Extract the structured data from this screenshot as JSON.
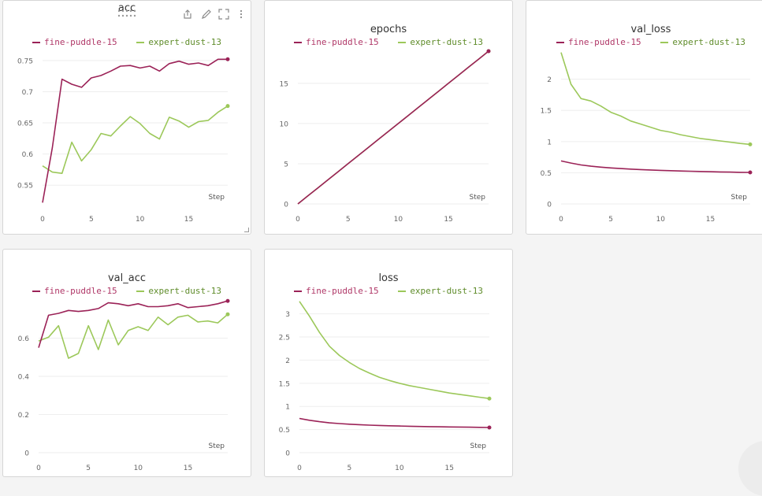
{
  "toolbar": {
    "drag": "drag-handle-icon",
    "export": "export-icon",
    "edit": "edit-icon",
    "fullscreen": "fullscreen-icon",
    "more": "more-vertical-icon"
  },
  "series_names": [
    "fine-puddle-15",
    "expert-dust-13"
  ],
  "series_colors": [
    "#9b2257",
    "#9cc85a"
  ],
  "legend_text_colors": [
    "#b03868",
    "#5f8c2a"
  ],
  "chart_data": [
    {
      "type": "line",
      "title": "acc",
      "xlabel": "Step",
      "xlim": [
        0,
        19
      ],
      "ylim": [
        0.52,
        0.765
      ],
      "yticks": [
        0.55,
        0.6,
        0.65,
        0.7,
        0.75
      ],
      "ytick_labels": [
        "0.55",
        "0.6",
        "0.65",
        "0.7",
        "0.75"
      ],
      "xticks": [
        0,
        5,
        10,
        15
      ],
      "xtick_labels": [
        "0",
        "5",
        "10",
        "15"
      ],
      "series": [
        {
          "name": "fine-puddle-15",
          "x": [
            0,
            1,
            2,
            3,
            4,
            5,
            6,
            7,
            8,
            9,
            10,
            11,
            12,
            13,
            14,
            15,
            16,
            17,
            18,
            19
          ],
          "values": [
            0.522,
            0.61,
            0.72,
            0.712,
            0.707,
            0.722,
            0.726,
            0.733,
            0.741,
            0.742,
            0.738,
            0.741,
            0.733,
            0.745,
            0.749,
            0.744,
            0.746,
            0.742,
            0.752,
            0.752
          ]
        },
        {
          "name": "expert-dust-13",
          "x": [
            0,
            1,
            2,
            3,
            4,
            5,
            6,
            7,
            8,
            9,
            10,
            11,
            12,
            13,
            14,
            15,
            16,
            17,
            18,
            19
          ],
          "values": [
            0.581,
            0.571,
            0.569,
            0.619,
            0.589,
            0.607,
            0.633,
            0.629,
            0.645,
            0.66,
            0.649,
            0.633,
            0.624,
            0.659,
            0.653,
            0.643,
            0.652,
            0.654,
            0.667,
            0.677
          ]
        }
      ]
    },
    {
      "type": "line",
      "title": "epochs",
      "xlabel": "Step",
      "xlim": [
        0,
        19
      ],
      "ylim": [
        0,
        19
      ],
      "yticks": [
        0,
        5,
        10,
        15
      ],
      "ytick_labels": [
        "0",
        "5",
        "10",
        "15"
      ],
      "xticks": [
        0,
        5,
        10,
        15
      ],
      "xtick_labels": [
        "0",
        "5",
        "10",
        "15"
      ],
      "series": [
        {
          "name": "fine-puddle-15",
          "x": [
            0,
            1,
            2,
            3,
            4,
            5,
            6,
            7,
            8,
            9,
            10,
            11,
            12,
            13,
            14,
            15,
            16,
            17,
            18,
            19
          ],
          "values": [
            0,
            1,
            2,
            3,
            4,
            5,
            6,
            7,
            8,
            9,
            10,
            11,
            12,
            13,
            14,
            15,
            16,
            17,
            18,
            19
          ]
        },
        {
          "name": "expert-dust-13",
          "x": [
            0,
            1,
            2,
            3,
            4,
            5,
            6,
            7,
            8,
            9,
            10,
            11,
            12,
            13,
            14,
            15,
            16,
            17,
            18,
            19
          ],
          "values": [
            0,
            1,
            2,
            3,
            4,
            5,
            6,
            7,
            8,
            9,
            10,
            11,
            12,
            13,
            14,
            15,
            16,
            17,
            18,
            19
          ]
        }
      ]
    },
    {
      "type": "line",
      "title": "val_loss",
      "xlabel": "Step",
      "xlim": [
        0,
        19
      ],
      "ylim": [
        0,
        2.45
      ],
      "yticks": [
        0,
        0.5,
        1,
        1.5,
        2
      ],
      "ytick_labels": [
        "0",
        "0.5",
        "1",
        "1.5",
        "2"
      ],
      "xticks": [
        0,
        5,
        10,
        15
      ],
      "xtick_labels": [
        "0",
        "5",
        "10",
        "15"
      ],
      "series": [
        {
          "name": "fine-puddle-15",
          "x": [
            0,
            1,
            2,
            3,
            4,
            5,
            6,
            7,
            8,
            9,
            10,
            11,
            12,
            13,
            14,
            15,
            16,
            17,
            18,
            19
          ],
          "values": [
            0.69,
            0.655,
            0.625,
            0.605,
            0.59,
            0.577,
            0.567,
            0.558,
            0.55,
            0.544,
            0.538,
            0.533,
            0.528,
            0.524,
            0.52,
            0.517,
            0.513,
            0.51,
            0.507,
            0.505
          ]
        },
        {
          "name": "expert-dust-13",
          "x": [
            0,
            1,
            2,
            3,
            4,
            5,
            6,
            7,
            8,
            9,
            10,
            11,
            12,
            13,
            14,
            15,
            16,
            17,
            18,
            19
          ],
          "values": [
            2.43,
            1.92,
            1.69,
            1.65,
            1.57,
            1.47,
            1.41,
            1.33,
            1.28,
            1.23,
            1.18,
            1.15,
            1.11,
            1.08,
            1.05,
            1.03,
            1.01,
            0.99,
            0.97,
            0.955
          ]
        }
      ]
    },
    {
      "type": "line",
      "title": "val_acc",
      "xlabel": "Step",
      "xlim": [
        0,
        19
      ],
      "ylim": [
        0,
        0.8
      ],
      "yticks": [
        0,
        0.2,
        0.4,
        0.6
      ],
      "ytick_labels": [
        "0",
        "0.2",
        "0.4",
        "0.6"
      ],
      "xticks": [
        0,
        5,
        10,
        15
      ],
      "xtick_labels": [
        "0",
        "5",
        "10",
        "15"
      ],
      "series": [
        {
          "name": "fine-puddle-15",
          "x": [
            0,
            1,
            2,
            3,
            4,
            5,
            6,
            7,
            8,
            9,
            10,
            11,
            12,
            13,
            14,
            15,
            16,
            17,
            18,
            19
          ],
          "values": [
            0.55,
            0.72,
            0.73,
            0.745,
            0.74,
            0.745,
            0.755,
            0.785,
            0.78,
            0.77,
            0.78,
            0.765,
            0.765,
            0.77,
            0.78,
            0.76,
            0.765,
            0.77,
            0.78,
            0.795
          ]
        },
        {
          "name": "expert-dust-13",
          "x": [
            0,
            1,
            2,
            3,
            4,
            5,
            6,
            7,
            8,
            9,
            10,
            11,
            12,
            13,
            14,
            15,
            16,
            17,
            18,
            19
          ],
          "values": [
            0.585,
            0.605,
            0.665,
            0.495,
            0.52,
            0.665,
            0.54,
            0.695,
            0.565,
            0.64,
            0.66,
            0.64,
            0.71,
            0.67,
            0.71,
            0.72,
            0.685,
            0.69,
            0.68,
            0.725
          ]
        }
      ]
    },
    {
      "type": "line",
      "title": "loss",
      "xlabel": "Step",
      "xlim": [
        0,
        19
      ],
      "ylim": [
        0,
        3.3
      ],
      "yticks": [
        0,
        0.5,
        1,
        1.5,
        2,
        2.5,
        3
      ],
      "ytick_labels": [
        "0",
        "0.5",
        "1",
        "1.5",
        "2",
        "2.5",
        "3"
      ],
      "xticks": [
        0,
        5,
        10,
        15
      ],
      "xtick_labels": [
        "0",
        "5",
        "10",
        "15"
      ],
      "series": [
        {
          "name": "fine-puddle-15",
          "x": [
            0,
            1,
            2,
            3,
            4,
            5,
            6,
            7,
            8,
            9,
            10,
            11,
            12,
            13,
            14,
            15,
            16,
            17,
            18,
            19
          ],
          "values": [
            0.74,
            0.7,
            0.67,
            0.645,
            0.63,
            0.615,
            0.605,
            0.595,
            0.588,
            0.582,
            0.577,
            0.572,
            0.567,
            0.563,
            0.56,
            0.557,
            0.554,
            0.551,
            0.548,
            0.545
          ]
        },
        {
          "name": "expert-dust-13",
          "x": [
            0,
            1,
            2,
            3,
            4,
            5,
            6,
            7,
            8,
            9,
            10,
            11,
            12,
            13,
            14,
            15,
            16,
            17,
            18,
            19
          ],
          "values": [
            3.27,
            2.95,
            2.6,
            2.3,
            2.1,
            1.95,
            1.82,
            1.72,
            1.63,
            1.56,
            1.5,
            1.45,
            1.41,
            1.37,
            1.33,
            1.29,
            1.26,
            1.23,
            1.2,
            1.17
          ]
        }
      ]
    }
  ]
}
